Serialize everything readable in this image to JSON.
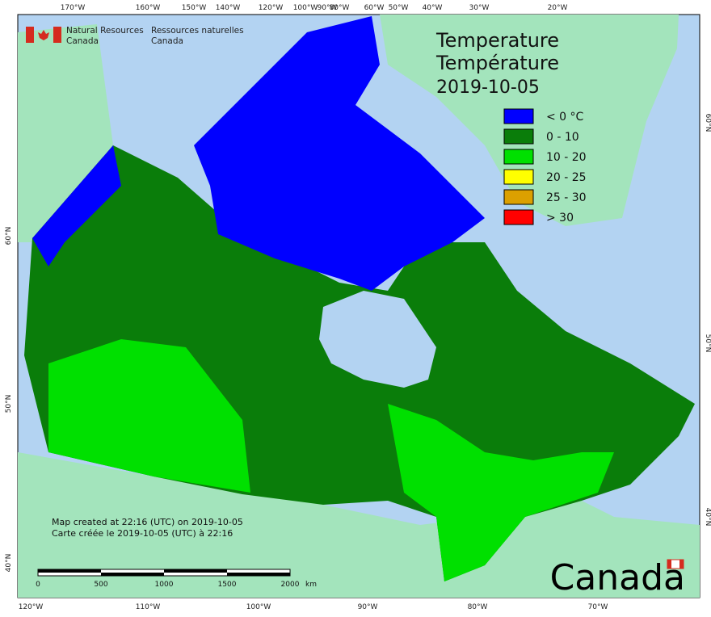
{
  "header": {
    "org_en": [
      "Natural Resources",
      "Canada"
    ],
    "org_fr": [
      "Ressources naturelles",
      "Canada"
    ]
  },
  "title": [
    "Temperature",
    "Température"
  ],
  "date": "2019-10-05",
  "legend": [
    {
      "label": "< 0 °C",
      "color": "#0000ff"
    },
    {
      "label": "0 - 10",
      "color": "#0a7d0a"
    },
    {
      "label": "10 - 20",
      "color": "#00e000"
    },
    {
      "label": "20 - 25",
      "color": "#ffff00"
    },
    {
      "label": "25 - 30",
      "color": "#dca000"
    },
    {
      "label": "> 30",
      "color": "#ff0000"
    }
  ],
  "top_labels": [
    "170°W",
    "160°W",
    "150°W",
    "140°W",
    "120°W",
    "100°W",
    "90°W",
    "80°W",
    "60°W",
    "50°W",
    "40°W",
    "30°W",
    "20°W"
  ],
  "bottom_labels": [
    "120°W",
    "110°W",
    "100°W",
    "90°W",
    "80°W",
    "70°W"
  ],
  "left_labels": [
    "60°N",
    "50°N",
    "40°N"
  ],
  "right_labels": [
    "60°N",
    "50°N",
    "40°N"
  ],
  "scale_bar": {
    "labels": [
      "0",
      "500",
      "1000",
      "1500",
      "2000"
    ],
    "unit": "km"
  },
  "credits": [
    "Map created at 22:16 (UTC) on 2019-10-05",
    "Carte créée le 2019-10-05 (UTC) à 22:16"
  ],
  "wordmark": "Canada"
}
